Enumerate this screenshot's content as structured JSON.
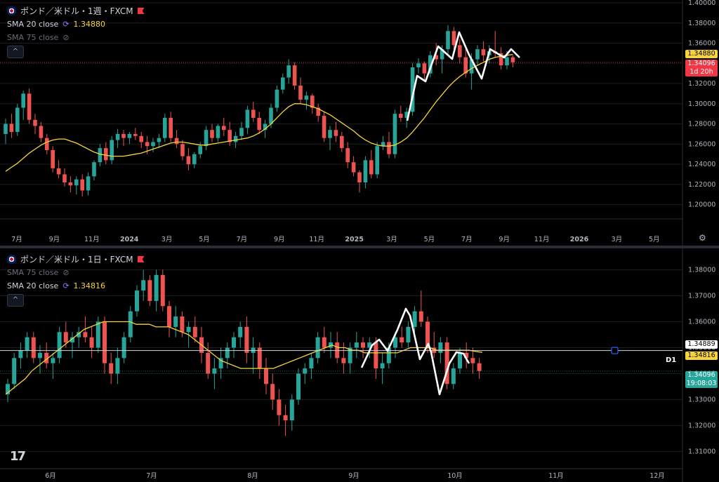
{
  "colors": {
    "up": "#26a69a",
    "down": "#ef5350",
    "sma": "#f7d43b",
    "grid": "#1a1c22",
    "axisText": "#b2b5be",
    "drawing": "#ffffff"
  },
  "pane1": {
    "title": "ポンド／米ドル・1週・FXCM",
    "sma_a_label": "SMA 20 close",
    "sma_a_value": "1.34880",
    "sma_b_label": "SMA 75 close",
    "collapse_icon": "^",
    "tags": {
      "sma": "1.34880",
      "price": "1.34096",
      "countdown": "1d 20h"
    }
  },
  "pane2": {
    "title": "ポンド／米ドル・1日・FXCM",
    "sma_a_label": "SMA 75 close",
    "sma_b_label": "SMA 20 close",
    "sma_b_value": "1.34816",
    "collapse_icon": "^",
    "tags": {
      "hline": "1.34889",
      "sma": "1.34816",
      "price": "1.34096",
      "countdown": "19:08:03"
    },
    "hline_label": "D1"
  },
  "chart_data": [
    {
      "type": "candlestick",
      "title": "ポンド／米ドル・1週・FXCM",
      "ylim": [
        1.19,
        1.4
      ],
      "y_ticks": [
        "1.40000",
        "1.38000",
        "1.36000",
        "1.34000",
        "1.32000",
        "1.30000",
        "1.28000",
        "1.26000",
        "1.24000",
        "1.22000",
        "1.20000"
      ],
      "x_ticks": [
        "7月",
        "9月",
        "11月",
        "2024",
        "3月",
        "5月",
        "7月",
        "9月",
        "11月",
        "2025",
        "3月",
        "5月",
        "7月",
        "9月",
        "11月",
        "2026",
        "3月",
        "5月"
      ],
      "candles_ohlc": [
        [
          1.27,
          1.285,
          1.26,
          1.28
        ],
        [
          1.28,
          1.29,
          1.266,
          1.272
        ],
        [
          1.272,
          1.3,
          1.268,
          1.296
        ],
        [
          1.296,
          1.313,
          1.284,
          1.31
        ],
        [
          1.31,
          1.315,
          1.28,
          1.284
        ],
        [
          1.284,
          1.29,
          1.27,
          1.278
        ],
        [
          1.278,
          1.282,
          1.262,
          1.266
        ],
        [
          1.266,
          1.27,
          1.25,
          1.254
        ],
        [
          1.254,
          1.258,
          1.232,
          1.236
        ],
        [
          1.236,
          1.244,
          1.226,
          1.23
        ],
        [
          1.23,
          1.236,
          1.218,
          1.222
        ],
        [
          1.222,
          1.228,
          1.212,
          1.219
        ],
        [
          1.219,
          1.228,
          1.21,
          1.225
        ],
        [
          1.225,
          1.23,
          1.208,
          1.214
        ],
        [
          1.214,
          1.232,
          1.209,
          1.228
        ],
        [
          1.228,
          1.244,
          1.224,
          1.242
        ],
        [
          1.242,
          1.26,
          1.238,
          1.256
        ],
        [
          1.256,
          1.262,
          1.24,
          1.244
        ],
        [
          1.244,
          1.268,
          1.24,
          1.264
        ],
        [
          1.264,
          1.275,
          1.256,
          1.27
        ],
        [
          1.27,
          1.274,
          1.258,
          1.266
        ],
        [
          1.266,
          1.272,
          1.26,
          1.27
        ],
        [
          1.27,
          1.276,
          1.264,
          1.268
        ],
        [
          1.268,
          1.272,
          1.256,
          1.262
        ],
        [
          1.262,
          1.268,
          1.25,
          1.258
        ],
        [
          1.258,
          1.266,
          1.252,
          1.262
        ],
        [
          1.262,
          1.27,
          1.256,
          1.266
        ],
        [
          1.266,
          1.29,
          1.262,
          1.286
        ],
        [
          1.286,
          1.292,
          1.262,
          1.266
        ],
        [
          1.266,
          1.274,
          1.256,
          1.26
        ],
        [
          1.26,
          1.264,
          1.244,
          1.248
        ],
        [
          1.248,
          1.256,
          1.234,
          1.24
        ],
        [
          1.24,
          1.252,
          1.236,
          1.25
        ],
        [
          1.25,
          1.262,
          1.246,
          1.258
        ],
        [
          1.258,
          1.278,
          1.254,
          1.274
        ],
        [
          1.274,
          1.28,
          1.262,
          1.266
        ],
        [
          1.266,
          1.28,
          1.262,
          1.278
        ],
        [
          1.278,
          1.286,
          1.268,
          1.274
        ],
        [
          1.274,
          1.282,
          1.258,
          1.262
        ],
        [
          1.262,
          1.272,
          1.256,
          1.268
        ],
        [
          1.268,
          1.282,
          1.264,
          1.276
        ],
        [
          1.276,
          1.298,
          1.27,
          1.294
        ],
        [
          1.294,
          1.302,
          1.282,
          1.286
        ],
        [
          1.286,
          1.292,
          1.27,
          1.274
        ],
        [
          1.274,
          1.284,
          1.266,
          1.28
        ],
        [
          1.28,
          1.3,
          1.276,
          1.296
        ],
        [
          1.296,
          1.318,
          1.292,
          1.314
        ],
        [
          1.314,
          1.33,
          1.31,
          1.326
        ],
        [
          1.326,
          1.344,
          1.32,
          1.338
        ],
        [
          1.338,
          1.341,
          1.314,
          1.318
        ],
        [
          1.318,
          1.326,
          1.3,
          1.304
        ],
        [
          1.304,
          1.312,
          1.294,
          1.308
        ],
        [
          1.308,
          1.31,
          1.29,
          1.296
        ],
        [
          1.296,
          1.3,
          1.282,
          1.288
        ],
        [
          1.288,
          1.292,
          1.262,
          1.266
        ],
        [
          1.266,
          1.278,
          1.254,
          1.274
        ],
        [
          1.274,
          1.282,
          1.262,
          1.268
        ],
        [
          1.268,
          1.272,
          1.252,
          1.256
        ],
        [
          1.256,
          1.262,
          1.236,
          1.242
        ],
        [
          1.242,
          1.248,
          1.228,
          1.232
        ],
        [
          1.232,
          1.234,
          1.212,
          1.222
        ],
        [
          1.222,
          1.248,
          1.216,
          1.244
        ],
        [
          1.244,
          1.254,
          1.226,
          1.23
        ],
        [
          1.23,
          1.262,
          1.226,
          1.258
        ],
        [
          1.258,
          1.268,
          1.254,
          1.262
        ],
        [
          1.262,
          1.272,
          1.246,
          1.25
        ],
        [
          1.25,
          1.294,
          1.246,
          1.29
        ],
        [
          1.29,
          1.298,
          1.282,
          1.286
        ],
        [
          1.286,
          1.296,
          1.276,
          1.292
        ],
        [
          1.292,
          1.34,
          1.288,
          1.336
        ],
        [
          1.336,
          1.345,
          1.33,
          1.34
        ],
        [
          1.34,
          1.342,
          1.322,
          1.33
        ],
        [
          1.33,
          1.352,
          1.326,
          1.348
        ],
        [
          1.348,
          1.36,
          1.338,
          1.344
        ],
        [
          1.344,
          1.358,
          1.33,
          1.354
        ],
        [
          1.354,
          1.378,
          1.348,
          1.372
        ],
        [
          1.372,
          1.376,
          1.354,
          1.358
        ],
        [
          1.358,
          1.364,
          1.34,
          1.346
        ],
        [
          1.346,
          1.354,
          1.326,
          1.33
        ],
        [
          1.33,
          1.35,
          1.314,
          1.344
        ],
        [
          1.344,
          1.358,
          1.338,
          1.354
        ],
        [
          1.354,
          1.362,
          1.342,
          1.348
        ],
        [
          1.348,
          1.358,
          1.34,
          1.352
        ],
        [
          1.352,
          1.372,
          1.346,
          1.35
        ],
        [
          1.35,
          1.356,
          1.334,
          1.338
        ],
        [
          1.338,
          1.352,
          1.334,
          1.346
        ],
        [
          1.346,
          1.348,
          1.336,
          1.341
        ]
      ],
      "sma20": [
        1.233,
        1.237,
        1.241,
        1.246,
        1.251,
        1.255,
        1.259,
        1.262,
        1.264,
        1.265,
        1.265,
        1.263,
        1.261,
        1.258,
        1.255,
        1.252,
        1.25,
        1.249,
        1.248,
        1.248,
        1.248,
        1.249,
        1.25,
        1.251,
        1.253,
        1.255,
        1.257,
        1.259,
        1.261,
        1.262,
        1.262,
        1.261,
        1.26,
        1.259,
        1.259,
        1.26,
        1.261,
        1.262,
        1.263,
        1.264,
        1.265,
        1.266,
        1.268,
        1.271,
        1.275,
        1.28,
        1.286,
        1.292,
        1.297,
        1.3,
        1.3,
        1.299,
        1.297,
        1.295,
        1.292,
        1.289,
        1.285,
        1.281,
        1.277,
        1.273,
        1.268,
        1.264,
        1.261,
        1.259,
        1.258,
        1.258,
        1.259,
        1.262,
        1.266,
        1.272,
        1.279,
        1.286,
        1.294,
        1.302,
        1.309,
        1.316,
        1.322,
        1.327,
        1.331,
        1.335,
        1.338,
        1.341,
        1.344,
        1.346,
        1.347,
        1.348,
        1.3488
      ]
    },
    {
      "type": "candlestick",
      "title": "ポンド／米ドル・1日・FXCM",
      "ylim": [
        1.305,
        1.385
      ],
      "y_ticks": [
        "1.38000",
        "1.37000",
        "1.36000",
        "1.35000",
        "1.34000",
        "1.33000",
        "1.32000",
        "1.31000"
      ],
      "x_ticks": [
        "6月",
        "7月",
        "8月",
        "9月",
        "10月",
        "11月",
        "12月"
      ],
      "horizontal_line": 1.34889,
      "candles_ohlc": [
        [
          1.332,
          1.338,
          1.329,
          1.336
        ],
        [
          1.336,
          1.348,
          1.334,
          1.346
        ],
        [
          1.346,
          1.352,
          1.342,
          1.349
        ],
        [
          1.349,
          1.356,
          1.346,
          1.354
        ],
        [
          1.354,
          1.356,
          1.344,
          1.346
        ],
        [
          1.346,
          1.351,
          1.34,
          1.348
        ],
        [
          1.348,
          1.352,
          1.342,
          1.344
        ],
        [
          1.344,
          1.348,
          1.338,
          1.346
        ],
        [
          1.346,
          1.358,
          1.344,
          1.356
        ],
        [
          1.356,
          1.36,
          1.35,
          1.352
        ],
        [
          1.352,
          1.356,
          1.346,
          1.354
        ],
        [
          1.354,
          1.358,
          1.35,
          1.356
        ],
        [
          1.356,
          1.362,
          1.352,
          1.354
        ],
        [
          1.354,
          1.358,
          1.346,
          1.35
        ],
        [
          1.35,
          1.362,
          1.348,
          1.36
        ],
        [
          1.36,
          1.362,
          1.34,
          1.344
        ],
        [
          1.344,
          1.348,
          1.336,
          1.34
        ],
        [
          1.34,
          1.35,
          1.336,
          1.346
        ],
        [
          1.346,
          1.356,
          1.344,
          1.354
        ],
        [
          1.354,
          1.366,
          1.352,
          1.364
        ],
        [
          1.364,
          1.374,
          1.362,
          1.372
        ],
        [
          1.372,
          1.38,
          1.368,
          1.376
        ],
        [
          1.376,
          1.378,
          1.366,
          1.368
        ],
        [
          1.368,
          1.38,
          1.364,
          1.378
        ],
        [
          1.378,
          1.38,
          1.364,
          1.366
        ],
        [
          1.366,
          1.368,
          1.354,
          1.358
        ],
        [
          1.358,
          1.366,
          1.354,
          1.362
        ],
        [
          1.362,
          1.364,
          1.354,
          1.356
        ],
        [
          1.356,
          1.36,
          1.35,
          1.358
        ],
        [
          1.358,
          1.362,
          1.352,
          1.354
        ],
        [
          1.354,
          1.358,
          1.344,
          1.348
        ],
        [
          1.348,
          1.352,
          1.338,
          1.34
        ],
        [
          1.34,
          1.346,
          1.334,
          1.342
        ],
        [
          1.342,
          1.35,
          1.338,
          1.346
        ],
        [
          1.346,
          1.352,
          1.342,
          1.35
        ],
        [
          1.35,
          1.356,
          1.346,
          1.354
        ],
        [
          1.354,
          1.36,
          1.35,
          1.358
        ],
        [
          1.358,
          1.362,
          1.344,
          1.348
        ],
        [
          1.348,
          1.354,
          1.34,
          1.35
        ],
        [
          1.35,
          1.352,
          1.338,
          1.342
        ],
        [
          1.342,
          1.346,
          1.332,
          1.336
        ],
        [
          1.336,
          1.34,
          1.326,
          1.33
        ],
        [
          1.33,
          1.334,
          1.32,
          1.324
        ],
        [
          1.324,
          1.328,
          1.316,
          1.322
        ],
        [
          1.322,
          1.332,
          1.318,
          1.33
        ],
        [
          1.33,
          1.342,
          1.328,
          1.34
        ],
        [
          1.34,
          1.344,
          1.336,
          1.342
        ],
        [
          1.342,
          1.348,
          1.338,
          1.346
        ],
        [
          1.346,
          1.356,
          1.344,
          1.354
        ],
        [
          1.354,
          1.358,
          1.348,
          1.35
        ],
        [
          1.35,
          1.356,
          1.346,
          1.352
        ],
        [
          1.352,
          1.356,
          1.344,
          1.346
        ],
        [
          1.346,
          1.352,
          1.34,
          1.344
        ],
        [
          1.344,
          1.352,
          1.34,
          1.35
        ],
        [
          1.35,
          1.356,
          1.346,
          1.352
        ],
        [
          1.352,
          1.354,
          1.346,
          1.35
        ],
        [
          1.35,
          1.354,
          1.346,
          1.352
        ],
        [
          1.352,
          1.354,
          1.338,
          1.342
        ],
        [
          1.342,
          1.348,
          1.336,
          1.344
        ],
        [
          1.344,
          1.352,
          1.342,
          1.35
        ],
        [
          1.35,
          1.356,
          1.346,
          1.354
        ],
        [
          1.354,
          1.358,
          1.35,
          1.352
        ],
        [
          1.352,
          1.36,
          1.35,
          1.358
        ],
        [
          1.358,
          1.366,
          1.356,
          1.364
        ],
        [
          1.364,
          1.372,
          1.358,
          1.36
        ],
        [
          1.36,
          1.362,
          1.348,
          1.35
        ],
        [
          1.35,
          1.356,
          1.346,
          1.348
        ],
        [
          1.348,
          1.354,
          1.344,
          1.352
        ],
        [
          1.352,
          1.354,
          1.334,
          1.336
        ],
        [
          1.336,
          1.344,
          1.334,
          1.342
        ],
        [
          1.342,
          1.35,
          1.34,
          1.348
        ],
        [
          1.348,
          1.352,
          1.342,
          1.346
        ],
        [
          1.346,
          1.35,
          1.34,
          1.344
        ],
        [
          1.344,
          1.346,
          1.338,
          1.341
        ]
      ],
      "sma20": [
        1.332,
        1.334,
        1.336,
        1.338,
        1.341,
        1.343,
        1.345,
        1.347,
        1.349,
        1.351,
        1.353,
        1.355,
        1.357,
        1.358,
        1.359,
        1.36,
        1.36,
        1.36,
        1.36,
        1.36,
        1.359,
        1.359,
        1.359,
        1.358,
        1.358,
        1.358,
        1.357,
        1.356,
        1.355,
        1.353,
        1.351,
        1.349,
        1.347,
        1.345,
        1.344,
        1.343,
        1.342,
        1.342,
        1.342,
        1.342,
        1.342,
        1.342,
        1.343,
        1.344,
        1.345,
        1.346,
        1.347,
        1.348,
        1.349,
        1.35,
        1.351,
        1.35,
        1.35,
        1.349,
        1.349,
        1.348,
        1.348,
        1.348,
        1.348,
        1.348,
        1.348,
        1.349,
        1.35,
        1.35,
        1.35,
        1.35,
        1.349,
        1.349,
        1.349,
        1.349,
        1.349,
        1.349,
        1.3485,
        1.3482
      ]
    }
  ]
}
